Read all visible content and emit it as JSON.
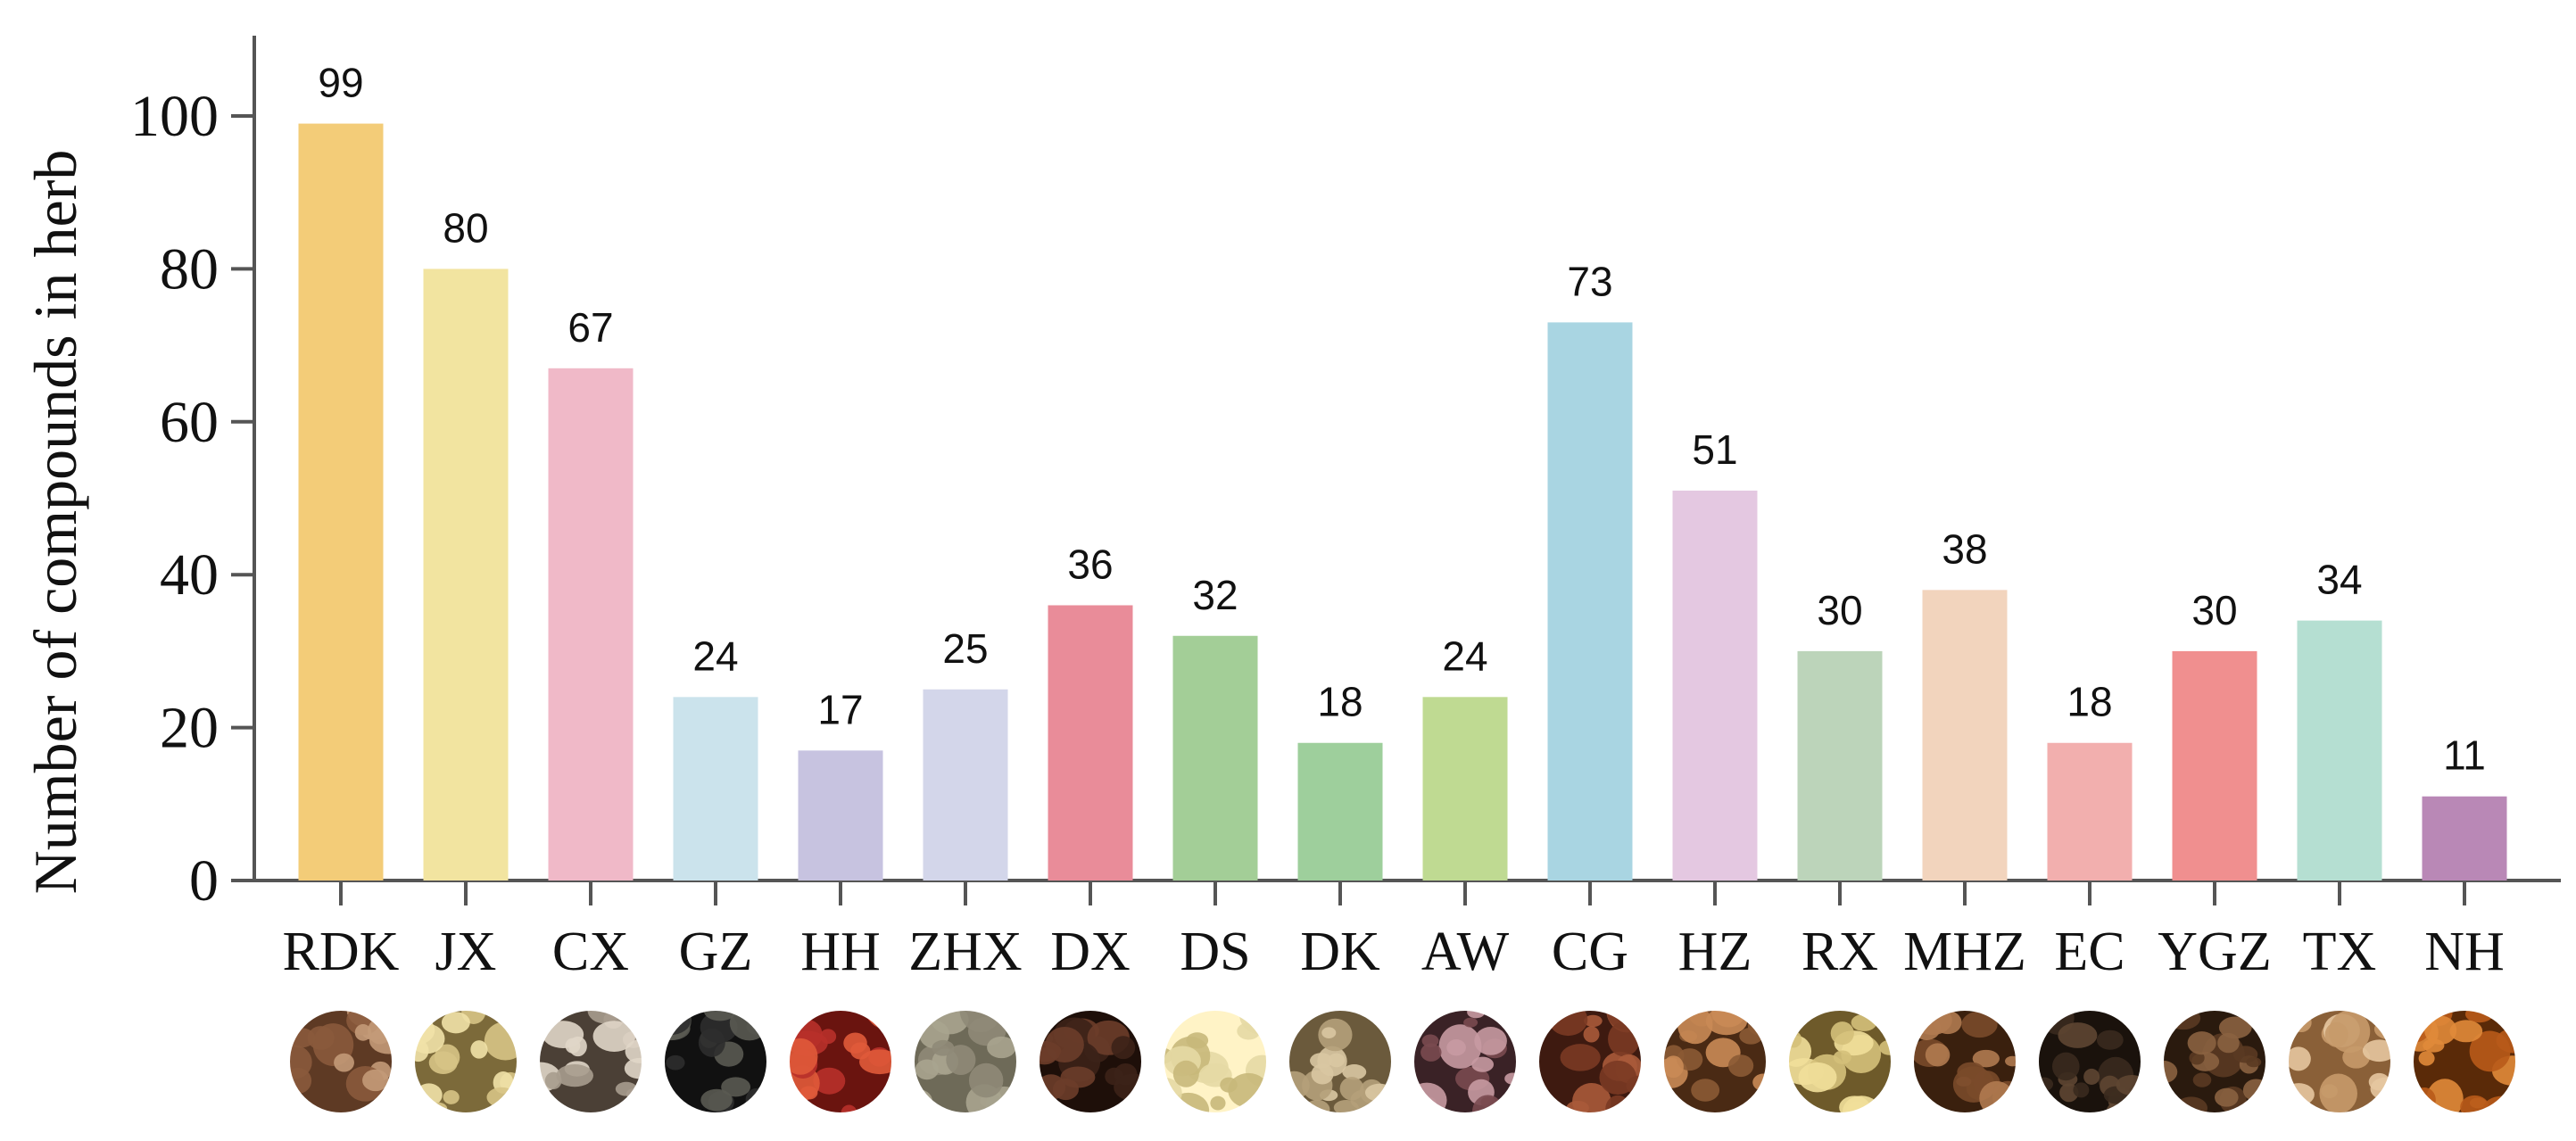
{
  "chart_data": {
    "type": "bar",
    "ylabel": "Number of compounds in herb",
    "xlabel": "",
    "ylim": [
      0,
      110
    ],
    "yticks": [
      0,
      20,
      40,
      60,
      80,
      100
    ],
    "grid": false,
    "categories": [
      "RDK",
      "JX",
      "CX",
      "GZ",
      "HH",
      "ZHX",
      "DX",
      "DS",
      "DK",
      "AW",
      "CG",
      "HZ",
      "RX",
      "MHZ",
      "EC",
      "YGZ",
      "TX",
      "NH"
    ],
    "values": [
      99,
      80,
      67,
      24,
      17,
      25,
      36,
      32,
      18,
      24,
      73,
      51,
      30,
      38,
      18,
      30,
      34,
      11
    ],
    "colors": [
      "#F3CC78",
      "#F2E4A0",
      "#F0B9C8",
      "#CBE3EC",
      "#C7C3E0",
      "#D3D6EA",
      "#E98C99",
      "#A3CE97",
      "#9ECF9C",
      "#BFDA92",
      "#A9D5E2",
      "#E4C8E1",
      "#BCD4BA",
      "#F2D4BD",
      "#F2AFAE",
      "#F08F8F",
      "#B5DFD2",
      "#B988B6"
    ],
    "herb_images": [
      "nutmeg-image",
      "frankincense-image",
      "agarwood-image",
      "dried-fruit-image",
      "safflower-image",
      "powder-image",
      "clove-image",
      "seed-image",
      "round-seed-image",
      "mineral-image",
      "almond-image",
      "almond-image",
      "frankincense-image",
      "almond-image",
      "resin-image",
      "pepper-image",
      "wood-chip-image",
      "orange-seed-image"
    ]
  }
}
